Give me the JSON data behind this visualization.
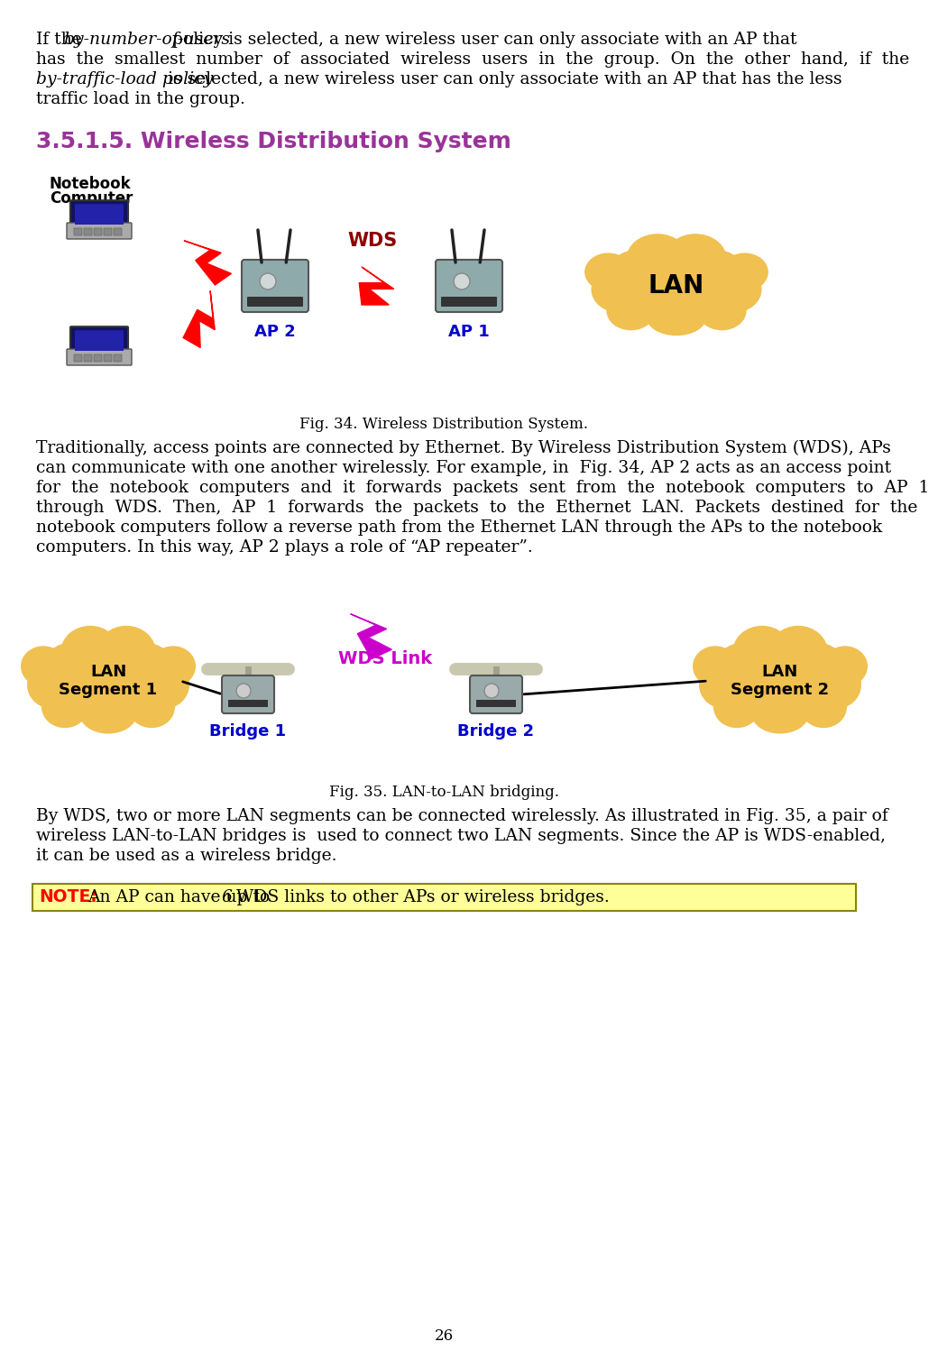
{
  "page_number": "26",
  "bg_color": "#ffffff",
  "heading_color": "#993399",
  "section_heading": "3.5.1.5. Wireless Distribution System",
  "fig34_caption": "Fig. 34. Wireless Distribution System.",
  "fig35_caption": "Fig. 35. LAN-to-LAN bridging.",
  "wds_label": "WDS",
  "wds_color": "#8B0000",
  "wds_link_label": "WDS Link",
  "wds_link_color": "#CC00CC",
  "ap1_label": "AP 1",
  "ap2_label": "AP 2",
  "ap_label_color": "#0000CC",
  "lan_label": "LAN",
  "lan_color": "#F0C050",
  "bridge1_label": "Bridge 1",
  "bridge2_label": "Bridge 2",
  "bridge_label_color": "#0000CC",
  "lan_seg1_label": "LAN\nSegment 1",
  "lan_seg2_label": "LAN\nSegment 2",
  "note_bg": "#FFFF99",
  "note_border": "#888800",
  "note_label_color": "#FF0000",
  "intro_line1a": "If the ",
  "intro_line1b": "by-number-of-users",
  "intro_line1c": " policy is selected, a new wireless user can only associate with an AP that",
  "intro_line2": "has  the  smallest  number  of  associated  wireless  users  in  the  group.  On  the  other  hand,  if  the",
  "intro_line3a": "by-traffic-load policy",
  "intro_line3b": " is selected, a new wireless user can only associate with an AP that has the less",
  "intro_line4": "traffic load in the group.",
  "desc34_l1": "Traditionally, access points are connected by Ethernet. By Wireless Distribution System (WDS), APs",
  "desc34_l2": "can communicate with one another wirelessly. For example, in  Fig. 34, AP 2 acts as an access point",
  "desc34_l3": "for  the  notebook  computers  and  it  forwards  packets  sent  from  the  notebook  computers  to  AP  1",
  "desc34_l4": "through  WDS.  Then,  AP  1  forwards  the  packets  to  the  Ethernet  LAN.  Packets  destined  for  the",
  "desc34_l5": "notebook computers follow a reverse path from the Ethernet LAN through the APs to the notebook",
  "desc34_l6": "computers. In this way, AP 2 plays a role of “AP repeater”.",
  "desc35_l1": "By WDS, two or more LAN segments can be connected wirelessly. As illustrated in Fig. 35, a pair of",
  "desc35_l2": "wireless LAN-to-LAN bridges is  used to connect two LAN segments. Since the AP is WDS-enabled,",
  "desc35_l3": "it can be used as a wireless bridge.",
  "note_line": " An AP can have up to 6 WDS links to other APs or wireless bridges.",
  "note_6_italic": true
}
